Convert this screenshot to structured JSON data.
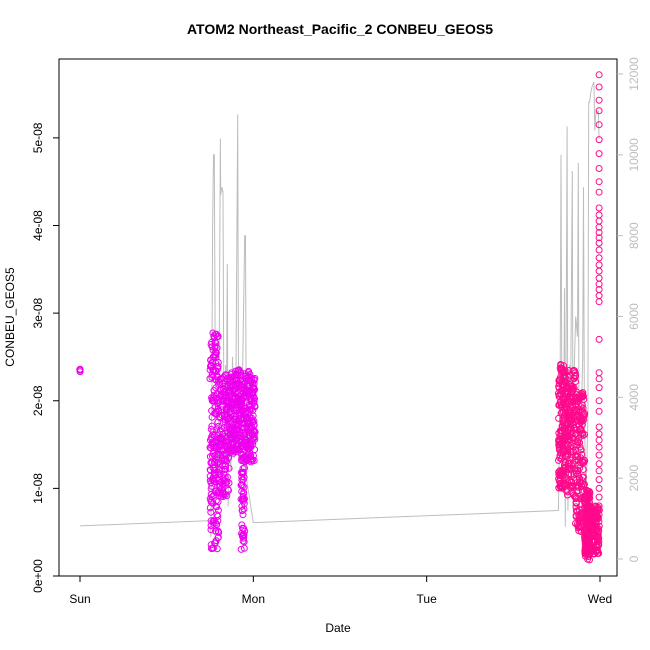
{
  "chart_data": {
    "type": "scatter",
    "title": "ATOM2 Northeast_Pacific_2 CONBEU_GEOS5",
    "xlabel": "Date",
    "ylabel": "CONBEU_GEOS5",
    "x_ticks": [
      "Sun",
      "Mon",
      "Tue",
      "Wed"
    ],
    "x_range_days": [
      0,
      3.04
    ],
    "ylim": [
      0,
      5.9e-08
    ],
    "y_ticks": [
      0,
      1e-08,
      2e-08,
      3e-08,
      4e-08,
      5e-08
    ],
    "y_tick_labels": [
      "0e+00",
      "1e-08",
      "2e-08",
      "3e-08",
      "4e-08",
      "5e-08"
    ],
    "ylim_right": [
      -350,
      12300
    ],
    "y_ticks_right": [
      0,
      2000,
      4000,
      6000,
      8000,
      10000,
      12000
    ],
    "y_tick_labels_right": [
      "0",
      "2000",
      "4000",
      "6000",
      "8000",
      "10000",
      "12000"
    ],
    "colors": {
      "magenta": "#ee00ee",
      "pink": "#ff0a8c",
      "altitude_line": "#bdbdbd"
    },
    "series": [
      {
        "color": "magenta",
        "segments": [
          {
            "x0": 0.0,
            "x1": 0.0,
            "ymin": 2.32e-08,
            "ymax": 2.36e-08,
            "n": 4
          },
          {
            "x0": 0.75,
            "x1": 0.8,
            "ymin": 3e-09,
            "ymax": 2.78e-08,
            "n": 180
          },
          {
            "x0": 0.8,
            "x1": 0.86,
            "ymin": 9e-09,
            "ymax": 2.3e-08,
            "n": 150
          },
          {
            "x0": 0.86,
            "x1": 0.93,
            "ymin": 1.4e-08,
            "ymax": 2.38e-08,
            "n": 170
          },
          {
            "x0": 0.93,
            "x1": 0.95,
            "ymin": 3e-09,
            "ymax": 2.3e-08,
            "n": 90
          },
          {
            "x0": 0.95,
            "x1": 1.01,
            "ymin": 1.3e-08,
            "ymax": 2.34e-08,
            "n": 150
          }
        ]
      },
      {
        "color": "pink",
        "segments": [
          {
            "x0": 2.76,
            "x1": 2.8,
            "ymin": 1e-08,
            "ymax": 2.42e-08,
            "n": 160
          },
          {
            "x0": 2.8,
            "x1": 2.86,
            "ymin": 9e-09,
            "ymax": 2.35e-08,
            "n": 170
          },
          {
            "x0": 2.86,
            "x1": 2.91,
            "ymin": 5e-09,
            "ymax": 2.1e-08,
            "n": 150
          },
          {
            "x0": 2.91,
            "x1": 2.94,
            "ymin": 1.8e-09,
            "ymax": 1e-08,
            "n": 140
          },
          {
            "x0": 2.94,
            "x1": 2.995,
            "ymin": 2.5e-09,
            "ymax": 8e-09,
            "n": 140
          }
        ],
        "column": {
          "x": 2.995,
          "values": [
            5.72e-08,
            5.58e-08,
            5.43e-08,
            5.31e-08,
            5.15e-08,
            4.98e-08,
            4.82e-08,
            4.65e-08,
            4.5e-08,
            4.38e-08,
            4.2e-08,
            4.12e-08,
            4.05e-08,
            3.98e-08,
            3.92e-08,
            3.86e-08,
            3.8e-08,
            3.72e-08,
            3.63e-08,
            3.55e-08,
            3.48e-08,
            3.4e-08,
            3.33e-08,
            3.27e-08,
            3.2e-08,
            3.13e-08,
            2.7e-08,
            2.32e-08,
            2.25e-08,
            2.15e-08,
            2e-08,
            1.88e-08,
            1.7e-08,
            1.62e-08,
            1.55e-08,
            1.47e-08,
            1.38e-08,
            1.28e-08,
            1.2e-08,
            1.1e-08,
            1e-08,
            9e-09,
            8e-09,
            7e-09
          ]
        }
      }
    ],
    "altitude_line": [
      [
        0.0,
        820
      ],
      [
        0.75,
        950
      ],
      [
        0.755,
        550
      ],
      [
        0.76,
        3500
      ],
      [
        0.765,
        8200
      ],
      [
        0.77,
        10000
      ],
      [
        0.775,
        10000
      ],
      [
        0.78,
        5000
      ],
      [
        0.785,
        1600
      ],
      [
        0.79,
        3200
      ],
      [
        0.8,
        2000
      ],
      [
        0.805,
        6500
      ],
      [
        0.81,
        10400
      ],
      [
        0.812,
        9000
      ],
      [
        0.815,
        9150
      ],
      [
        0.82,
        9200
      ],
      [
        0.822,
        9100
      ],
      [
        0.825,
        9100
      ],
      [
        0.83,
        3600
      ],
      [
        0.838,
        2800
      ],
      [
        0.84,
        4800
      ],
      [
        0.843,
        2500
      ],
      [
        0.85,
        7300
      ],
      [
        0.855,
        1300
      ],
      [
        0.86,
        3500
      ],
      [
        0.87,
        2200
      ],
      [
        0.88,
        5000
      ],
      [
        0.89,
        2500
      ],
      [
        0.9,
        4700
      ],
      [
        0.91,
        11000
      ],
      [
        0.915,
        3500
      ],
      [
        0.925,
        2400
      ],
      [
        0.935,
        3800
      ],
      [
        0.95,
        8000
      ],
      [
        0.955,
        8000
      ],
      [
        0.96,
        2000
      ],
      [
        1.0,
        900
      ],
      [
        2.76,
        1200
      ],
      [
        2.77,
        4000
      ],
      [
        2.775,
        10000
      ],
      [
        2.78,
        3500
      ],
      [
        2.79,
        2500
      ],
      [
        2.795,
        6700
      ],
      [
        2.8,
        800
      ],
      [
        2.81,
        10700
      ],
      [
        2.815,
        1200
      ],
      [
        2.825,
        4800
      ],
      [
        2.83,
        3600
      ],
      [
        2.84,
        9600
      ],
      [
        2.845,
        1200
      ],
      [
        2.85,
        4500
      ],
      [
        2.86,
        6000
      ],
      [
        2.87,
        5500
      ],
      [
        2.875,
        9800
      ],
      [
        2.88,
        800
      ],
      [
        2.89,
        3000
      ],
      [
        2.9,
        5000
      ],
      [
        2.905,
        9200
      ],
      [
        2.91,
        3500
      ],
      [
        2.92,
        1500
      ],
      [
        2.93,
        3500
      ],
      [
        2.935,
        11300
      ],
      [
        2.94,
        11300
      ],
      [
        2.945,
        11500
      ],
      [
        2.95,
        11600
      ],
      [
        2.955,
        11700
      ],
      [
        2.96,
        11750
      ],
      [
        2.965,
        11800
      ],
      [
        2.97,
        10600
      ],
      [
        2.975,
        11000
      ],
      [
        2.98,
        11100
      ],
      [
        2.985,
        11000
      ],
      [
        2.99,
        11100
      ],
      [
        2.995,
        10400
      ]
    ]
  }
}
